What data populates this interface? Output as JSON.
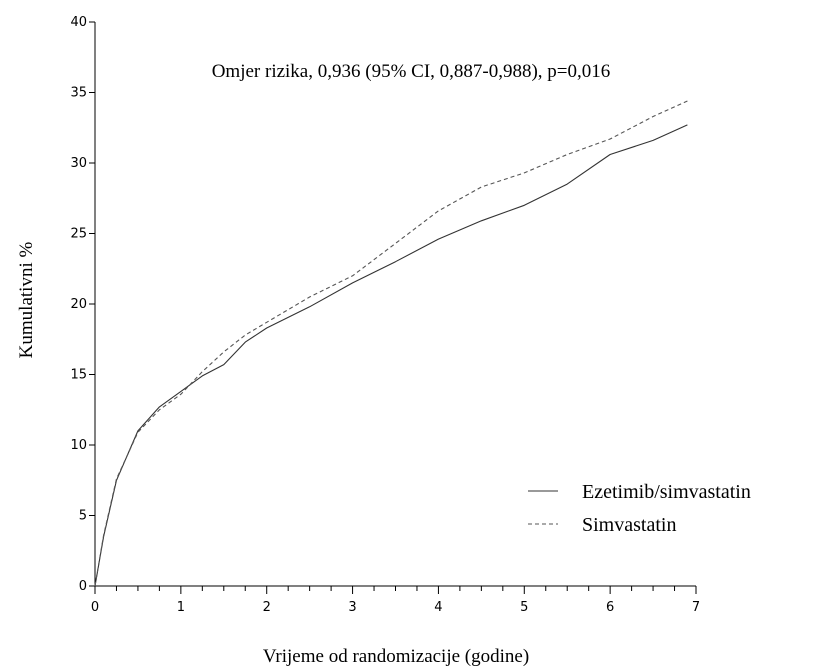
{
  "chart_data": {
    "type": "line",
    "title": "",
    "annotation": "Omjer rizika, 0,936 (95% CI, 0,887-0,988), p=0,016",
    "xlabel": "Vrijeme od randomizacije (godine)",
    "ylabel": "Kumulativni %",
    "xlim": [
      0,
      7
    ],
    "ylim": [
      0,
      40
    ],
    "x_ticks": [
      0,
      1,
      2,
      3,
      4,
      5,
      6,
      7
    ],
    "x_tick_labels": [
      "0",
      "1",
      "2",
      "3",
      "4",
      "5",
      "6",
      "7"
    ],
    "y_ticks": [
      0,
      5,
      10,
      15,
      20,
      25,
      30,
      35,
      40
    ],
    "y_tick_labels": [
      "0",
      "5",
      "10",
      "15",
      "20",
      "25",
      "30",
      "35",
      "40"
    ],
    "grid": false,
    "legend_position": "bottom-right",
    "series": [
      {
        "name": "Ezetimib/simvastatin",
        "line_style": "solid",
        "color": "#333333",
        "x": [
          0,
          0.1,
          0.25,
          0.5,
          0.75,
          1.0,
          1.25,
          1.5,
          1.75,
          2.0,
          2.5,
          3.0,
          3.5,
          4.0,
          4.5,
          5.0,
          5.5,
          6.0,
          6.5,
          6.9
        ],
        "y": [
          0,
          3.5,
          7.5,
          11.0,
          12.7,
          13.8,
          14.9,
          15.7,
          17.3,
          18.3,
          19.8,
          21.5,
          23.0,
          24.6,
          25.9,
          27.0,
          28.5,
          30.6,
          31.6,
          32.7
        ]
      },
      {
        "name": "Simvastatin",
        "line_style": "dashed",
        "color": "#555555",
        "x": [
          0,
          0.1,
          0.25,
          0.5,
          0.75,
          1.0,
          1.25,
          1.5,
          1.75,
          2.0,
          2.5,
          3.0,
          3.5,
          4.0,
          4.5,
          5.0,
          5.5,
          6.0,
          6.5,
          6.9
        ],
        "y": [
          0,
          3.6,
          7.6,
          10.9,
          12.5,
          13.6,
          15.2,
          16.6,
          17.8,
          18.7,
          20.5,
          22.0,
          24.3,
          26.6,
          28.3,
          29.3,
          30.6,
          31.7,
          33.3,
          34.4
        ]
      }
    ]
  }
}
